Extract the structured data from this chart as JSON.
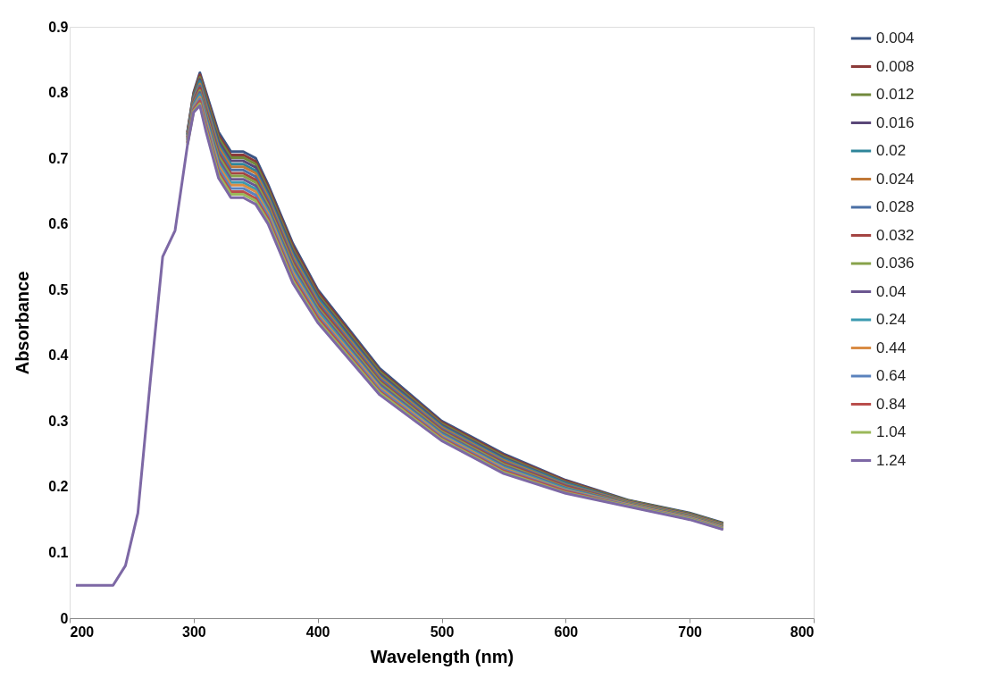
{
  "chart_data": {
    "type": "line",
    "xlabel": "Wavelength (nm)",
    "ylabel": "Absorbance",
    "x": [
      205,
      215,
      225,
      235,
      245,
      255,
      265,
      275,
      285,
      295,
      300,
      305,
      310,
      320,
      330,
      340,
      350,
      360,
      380,
      400,
      450,
      500,
      550,
      600,
      650,
      700,
      727
    ],
    "xlim": [
      200,
      800
    ],
    "xticks": [
      200,
      300,
      400,
      500,
      600,
      700,
      800
    ],
    "ylim": [
      0,
      0.9
    ],
    "yticks": [
      0,
      0.1,
      0.2,
      0.3,
      0.4,
      0.5,
      0.6,
      0.7,
      0.8,
      0.9
    ],
    "grid": false,
    "legend": "right",
    "marker": "none",
    "line_style": "solid",
    "series": [
      {
        "name": "0.004",
        "color": "#3a5585",
        "values": [
          null,
          null,
          null,
          null,
          null,
          null,
          null,
          null,
          null,
          0.74,
          0.8,
          0.83,
          0.8,
          0.74,
          0.71,
          0.71,
          0.7,
          0.66,
          0.57,
          0.5,
          0.38,
          0.3,
          0.25,
          0.21,
          0.18,
          0.16,
          0.145
        ]
      },
      {
        "name": "0.008",
        "color": "#8b3a38",
        "values": [
          null,
          null,
          null,
          null,
          null,
          null,
          null,
          null,
          null,
          0.739,
          0.798,
          0.827,
          0.796,
          0.735,
          0.705,
          0.705,
          0.695,
          0.656,
          0.566,
          0.497,
          0.377,
          0.298,
          0.248,
          0.209,
          0.179,
          0.159,
          0.144
        ]
      },
      {
        "name": "0.012",
        "color": "#71893c",
        "values": [
          null,
          null,
          null,
          null,
          null,
          null,
          null,
          null,
          null,
          0.737,
          0.796,
          0.823,
          0.792,
          0.731,
          0.701,
          0.701,
          0.691,
          0.652,
          0.562,
          0.493,
          0.375,
          0.296,
          0.246,
          0.207,
          0.179,
          0.159,
          0.144
        ]
      },
      {
        "name": "0.016",
        "color": "#5a4778",
        "values": [
          null,
          null,
          null,
          null,
          null,
          null,
          null,
          null,
          null,
          0.736,
          0.794,
          0.82,
          0.788,
          0.726,
          0.696,
          0.696,
          0.686,
          0.648,
          0.558,
          0.49,
          0.372,
          0.294,
          0.244,
          0.206,
          0.178,
          0.158,
          0.143
        ]
      },
      {
        "name": "0.02",
        "color": "#2e8599",
        "values": [
          null,
          null,
          null,
          null,
          null,
          null,
          null,
          null,
          null,
          0.735,
          0.792,
          0.817,
          0.784,
          0.721,
          0.691,
          0.691,
          0.681,
          0.644,
          0.554,
          0.487,
          0.369,
          0.292,
          0.242,
          0.205,
          0.177,
          0.157,
          0.142
        ]
      },
      {
        "name": "0.024",
        "color": "#c07837",
        "values": [
          null,
          null,
          null,
          null,
          null,
          null,
          null,
          null,
          null,
          0.733,
          0.79,
          0.813,
          0.78,
          0.717,
          0.687,
          0.687,
          0.677,
          0.64,
          0.55,
          0.483,
          0.367,
          0.29,
          0.24,
          0.203,
          0.177,
          0.157,
          0.142
        ]
      },
      {
        "name": "0.028",
        "color": "#4a6fa5",
        "values": [
          null,
          null,
          null,
          null,
          null,
          null,
          null,
          null,
          null,
          0.732,
          0.788,
          0.81,
          0.776,
          0.712,
          0.682,
          0.682,
          0.672,
          0.636,
          0.546,
          0.48,
          0.364,
          0.288,
          0.238,
          0.202,
          0.176,
          0.156,
          0.141
        ]
      },
      {
        "name": "0.032",
        "color": "#a44442",
        "values": [
          null,
          null,
          null,
          null,
          null,
          null,
          null,
          null,
          null,
          0.731,
          0.786,
          0.807,
          0.772,
          0.707,
          0.677,
          0.677,
          0.667,
          0.632,
          0.542,
          0.477,
          0.361,
          0.286,
          0.236,
          0.201,
          0.175,
          0.155,
          0.14
        ]
      },
      {
        "name": "0.036",
        "color": "#87a24a",
        "values": [
          null,
          null,
          null,
          null,
          null,
          null,
          null,
          null,
          null,
          0.729,
          0.784,
          0.803,
          0.768,
          0.703,
          0.673,
          0.673,
          0.663,
          0.628,
          0.538,
          0.473,
          0.359,
          0.284,
          0.234,
          0.199,
          0.175,
          0.155,
          0.14
        ]
      },
      {
        "name": "0.04",
        "color": "#6b5690",
        "values": [
          null,
          null,
          null,
          null,
          null,
          null,
          null,
          null,
          null,
          0.728,
          0.782,
          0.8,
          0.764,
          0.698,
          0.668,
          0.668,
          0.658,
          0.624,
          0.534,
          0.47,
          0.356,
          0.282,
          0.232,
          0.198,
          0.174,
          0.154,
          0.139
        ]
      },
      {
        "name": "0.24",
        "color": "#3b9ab0",
        "values": [
          null,
          null,
          null,
          null,
          null,
          null,
          null,
          null,
          null,
          0.727,
          0.78,
          0.797,
          0.76,
          0.693,
          0.663,
          0.663,
          0.653,
          0.62,
          0.53,
          0.467,
          0.353,
          0.28,
          0.23,
          0.197,
          0.173,
          0.153,
          0.138
        ]
      },
      {
        "name": "0.44",
        "color": "#d98c45",
        "values": [
          null,
          null,
          null,
          null,
          null,
          null,
          null,
          null,
          null,
          0.725,
          0.778,
          0.793,
          0.756,
          0.689,
          0.659,
          0.659,
          0.649,
          0.616,
          0.526,
          0.463,
          0.351,
          0.278,
          0.228,
          0.195,
          0.173,
          0.153,
          0.138
        ]
      },
      {
        "name": "0.64",
        "color": "#5a82bd",
        "values": [
          null,
          null,
          null,
          null,
          null,
          null,
          null,
          null,
          null,
          0.724,
          0.776,
          0.79,
          0.752,
          0.684,
          0.654,
          0.654,
          0.644,
          0.612,
          0.522,
          0.46,
          0.348,
          0.276,
          0.226,
          0.194,
          0.172,
          0.152,
          0.137
        ]
      },
      {
        "name": "0.84",
        "color": "#b94e4c",
        "values": [
          null,
          null,
          null,
          null,
          null,
          null,
          null,
          null,
          null,
          0.723,
          0.774,
          0.787,
          0.748,
          0.679,
          0.649,
          0.649,
          0.639,
          0.608,
          0.518,
          0.457,
          0.345,
          0.274,
          0.224,
          0.193,
          0.171,
          0.151,
          0.136
        ]
      },
      {
        "name": "1.04",
        "color": "#9bb85a",
        "values": [
          null,
          null,
          null,
          null,
          null,
          null,
          null,
          null,
          null,
          0.721,
          0.772,
          0.783,
          0.744,
          0.675,
          0.645,
          0.645,
          0.635,
          0.604,
          0.514,
          0.453,
          0.343,
          0.272,
          0.222,
          0.191,
          0.171,
          0.151,
          0.136
        ]
      },
      {
        "name": "1.24",
        "color": "#7d68a5",
        "values": [
          0.05,
          0.05,
          0.05,
          0.05,
          0.08,
          0.16,
          0.36,
          0.55,
          0.59,
          0.72,
          0.77,
          0.78,
          0.74,
          0.67,
          0.64,
          0.64,
          0.63,
          0.6,
          0.51,
          0.45,
          0.34,
          0.27,
          0.22,
          0.19,
          0.17,
          0.15,
          0.135
        ]
      }
    ]
  }
}
